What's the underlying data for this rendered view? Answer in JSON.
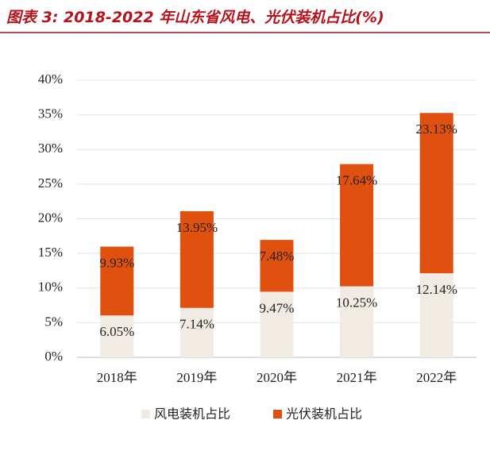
{
  "chart_data": {
    "type": "stacked_bar",
    "title": "图表 3: 2018-2022 年山东省风电、光伏装机占比(%)",
    "categories": [
      "2018年",
      "2019年",
      "2020年",
      "2021年",
      "2022年"
    ],
    "series": [
      {
        "name": "风电装机占比",
        "color": "#f2ebe4",
        "values": [
          6.05,
          7.14,
          9.47,
          10.25,
          12.14
        ],
        "value_labels": [
          "6.05%",
          "7.14%",
          "9.47%",
          "10.25%",
          "12.14%"
        ]
      },
      {
        "name": "光伏装机占比",
        "color": "#e0500f",
        "values": [
          9.93,
          13.95,
          7.48,
          17.64,
          23.13
        ],
        "value_labels": [
          "9.93%",
          "13.95%",
          "7.48%",
          "17.64%",
          "23.13%"
        ]
      }
    ],
    "ylim": [
      0,
      40
    ],
    "yticks": [
      {
        "value": 0,
        "label": "0%"
      },
      {
        "value": 5,
        "label": "5%"
      },
      {
        "value": 10,
        "label": "10%"
      },
      {
        "value": 15,
        "label": "15%"
      },
      {
        "value": 20,
        "label": "20%"
      },
      {
        "value": 25,
        "label": "25%"
      },
      {
        "value": 30,
        "label": "30%"
      },
      {
        "value": 35,
        "label": "35%"
      },
      {
        "value": 40,
        "label": "40%"
      }
    ],
    "grid": true
  }
}
